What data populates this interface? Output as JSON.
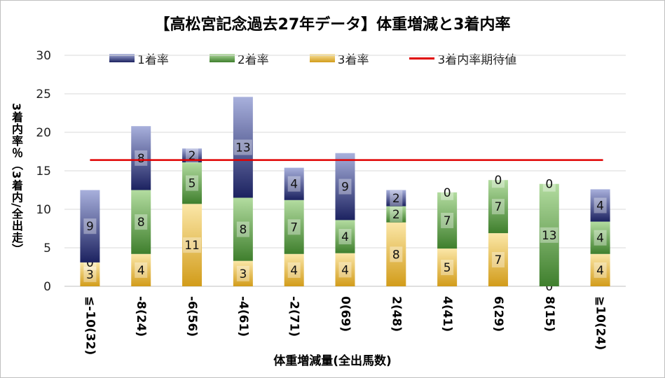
{
  "chart_data": {
    "type": "bar",
    "title": "【高松宮記念過去27年データ】体重増減と3着内率",
    "xlabel": "体重増減量(全出馬数)",
    "ylabel": "3着内率％（3着内/全出走）",
    "ylim": [
      0,
      30
    ],
    "yticks": [
      "0",
      "5",
      "10",
      "15",
      "20",
      "25",
      "30"
    ],
    "categories": [
      "≦-10(32)",
      "-8(24)",
      "-6(56)",
      "-4(61)",
      "-2(71)",
      "0(69)",
      "2(48)",
      "4(41)",
      "6(29)",
      "8(15)",
      "≧10(24)"
    ],
    "series": [
      {
        "name": "3着率",
        "color": "#f3c45c",
        "values": [
          3.1,
          4.2,
          10.7,
          3.3,
          4.2,
          4.3,
          8.3,
          4.9,
          6.9,
          0.0,
          4.2
        ],
        "labels": [
          "3",
          "4",
          "11",
          "3",
          "4",
          "4",
          "8",
          "5",
          "7",
          "0",
          "4"
        ]
      },
      {
        "name": "2着率",
        "color": "#6aa84f",
        "values": [
          0.0,
          8.3,
          5.4,
          8.2,
          7.0,
          4.3,
          2.1,
          7.3,
          6.9,
          13.3,
          4.2
        ],
        "labels": [
          "0",
          "8",
          "5",
          "8",
          "7",
          "4",
          "2",
          "7",
          "7",
          "13",
          "4"
        ]
      },
      {
        "name": "1着率",
        "color": "#3c4595",
        "values": [
          9.4,
          8.3,
          1.8,
          13.1,
          4.2,
          8.7,
          2.1,
          0.0,
          0.0,
          0.0,
          4.2
        ],
        "labels": [
          "9",
          "8",
          "2",
          "13",
          "4",
          "9",
          "2",
          "0",
          "0",
          "0",
          "4"
        ]
      }
    ],
    "reference_line": {
      "name": "3着内率期待値",
      "value": 16.4,
      "color": "#e00000"
    },
    "grid": true,
    "legend_position": "top"
  },
  "legend": [
    {
      "label": "1着率",
      "kind": "bar",
      "color": "#3c4595"
    },
    {
      "label": "2着率",
      "kind": "bar",
      "color": "#6aa84f"
    },
    {
      "label": "3着率",
      "kind": "bar",
      "color": "#f3c45c"
    },
    {
      "label": "3着内率期待値",
      "kind": "line",
      "color": "#e00000"
    }
  ]
}
